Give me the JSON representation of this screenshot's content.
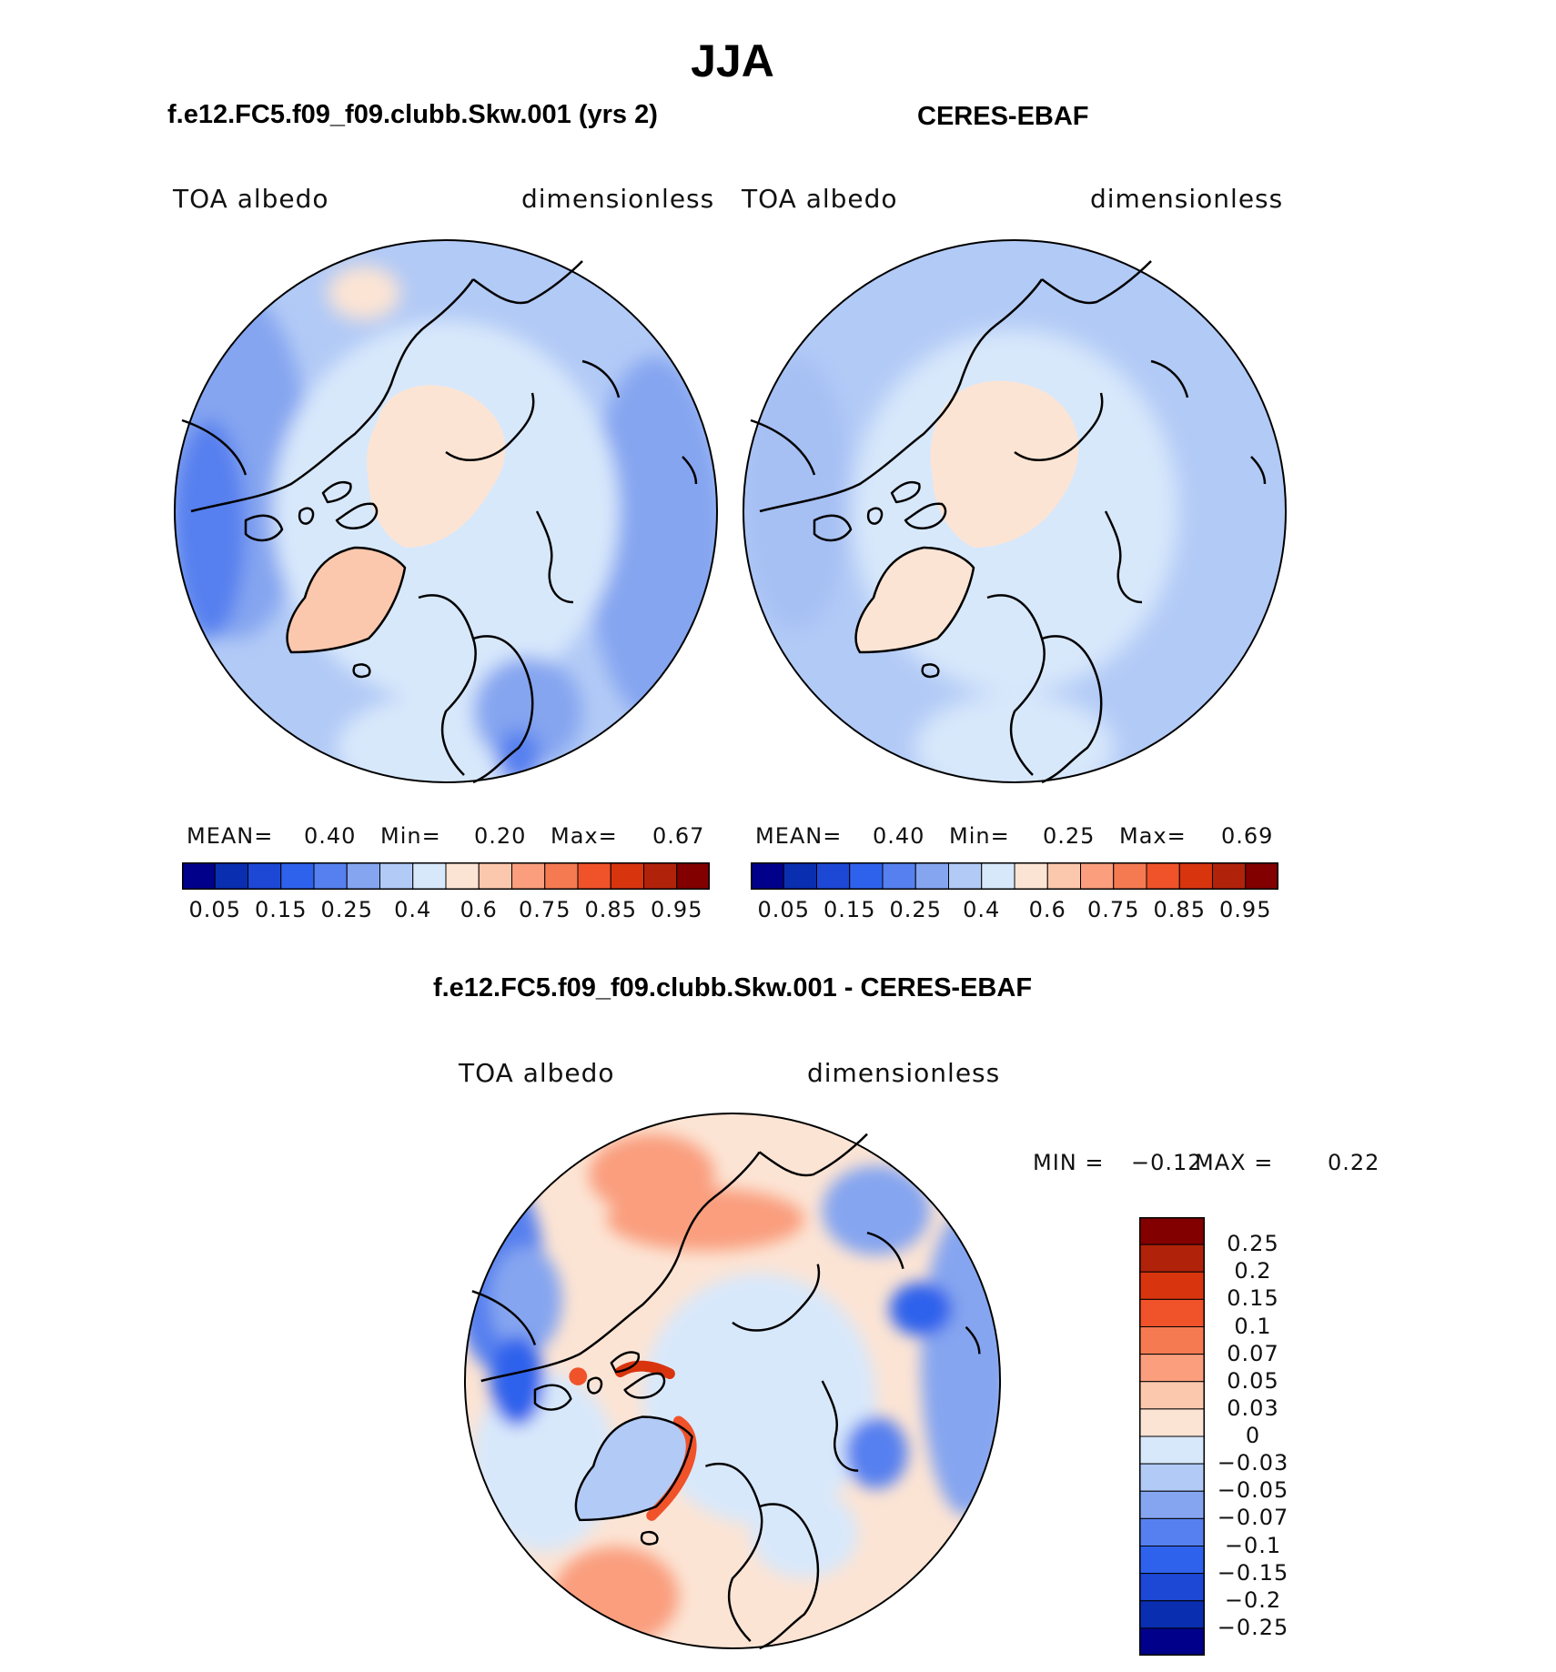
{
  "figure": {
    "title": "JJA",
    "colors": {
      "coast": "#000000",
      "background": "#ffffff"
    }
  },
  "panels": [
    {
      "subtitle": "f.e12.FC5.f09_f09.clubb.Skw.001 (yrs 2)",
      "variable_label": "TOA albedo",
      "units_label": "dimensionless",
      "stats": {
        "mean_label": "MEAN=",
        "mean": "0.40",
        "min_label": "Min=",
        "min": "0.20",
        "max_label": "Max=",
        "max": "0.67"
      }
    },
    {
      "subtitle": "CERES-EBAF",
      "variable_label": "TOA albedo",
      "units_label": "dimensionless",
      "stats": {
        "mean_label": "MEAN=",
        "mean": "0.40",
        "min_label": "Min=",
        "min": "0.25",
        "max_label": "Max=",
        "max": "0.69"
      }
    }
  ],
  "diff_panel": {
    "subtitle": "f.e12.FC5.f09_f09.clubb.Skw.001 - CERES-EBAF",
    "variable_label": "TOA albedo",
    "units_label": "dimensionless",
    "stats": {
      "min_label": "MIN =",
      "min": "−0.12",
      "max_label": "MAX =",
      "max": "0.22"
    }
  },
  "chart_data": [
    {
      "type": "heatmap",
      "projection": "north-polar-stereographic",
      "title": "f.e12.FC5.f09_f09.clubb.Skw.001 (yrs 2)",
      "variable": "TOA albedo",
      "units": "dimensionless",
      "mean": 0.4,
      "min": 0.2,
      "max": 0.67,
      "colorbar": {
        "orientation": "horizontal",
        "tick_labels": [
          "0.05",
          "0.15",
          "0.25",
          "0.4",
          "0.6",
          "0.75",
          "0.85",
          "0.95"
        ],
        "colors": [
          "#00008b",
          "#0a2eb0",
          "#1d48d6",
          "#2f62ec",
          "#5680ef",
          "#85a5f0",
          "#b2caf6",
          "#d8e8fb",
          "#fce4d4",
          "#fcc8ad",
          "#fa9e7e",
          "#f57a52",
          "#f0522a",
          "#d8350f",
          "#b1220b",
          "#820000"
        ]
      }
    },
    {
      "type": "heatmap",
      "projection": "north-polar-stereographic",
      "title": "CERES-EBAF",
      "variable": "TOA albedo",
      "units": "dimensionless",
      "mean": 0.4,
      "min": 0.25,
      "max": 0.69,
      "colorbar": {
        "orientation": "horizontal",
        "tick_labels": [
          "0.05",
          "0.15",
          "0.25",
          "0.4",
          "0.6",
          "0.75",
          "0.85",
          "0.95"
        ],
        "colors": [
          "#00008b",
          "#0a2eb0",
          "#1d48d6",
          "#2f62ec",
          "#5680ef",
          "#85a5f0",
          "#b2caf6",
          "#d8e8fb",
          "#fce4d4",
          "#fcc8ad",
          "#fa9e7e",
          "#f57a52",
          "#f0522a",
          "#d8350f",
          "#b1220b",
          "#820000"
        ]
      }
    },
    {
      "type": "heatmap",
      "projection": "north-polar-stereographic",
      "title": "f.e12.FC5.f09_f09.clubb.Skw.001 - CERES-EBAF",
      "variable": "TOA albedo",
      "units": "dimensionless",
      "min": -0.12,
      "max": 0.22,
      "colorbar": {
        "orientation": "vertical",
        "tick_labels": [
          "0.25",
          "0.2",
          "0.15",
          "0.1",
          "0.07",
          "0.05",
          "0.03",
          "0",
          "−0.03",
          "−0.05",
          "−0.07",
          "−0.1",
          "−0.15",
          "−0.2",
          "−0.25"
        ],
        "colors": [
          "#820000",
          "#b1220b",
          "#d8350f",
          "#f0522a",
          "#f57a52",
          "#fa9e7e",
          "#fcc8ad",
          "#fce4d4",
          "#d8e8fb",
          "#b2caf6",
          "#85a5f0",
          "#5680ef",
          "#2f62ec",
          "#1d48d6",
          "#0a2eb0",
          "#00008b"
        ]
      }
    }
  ]
}
